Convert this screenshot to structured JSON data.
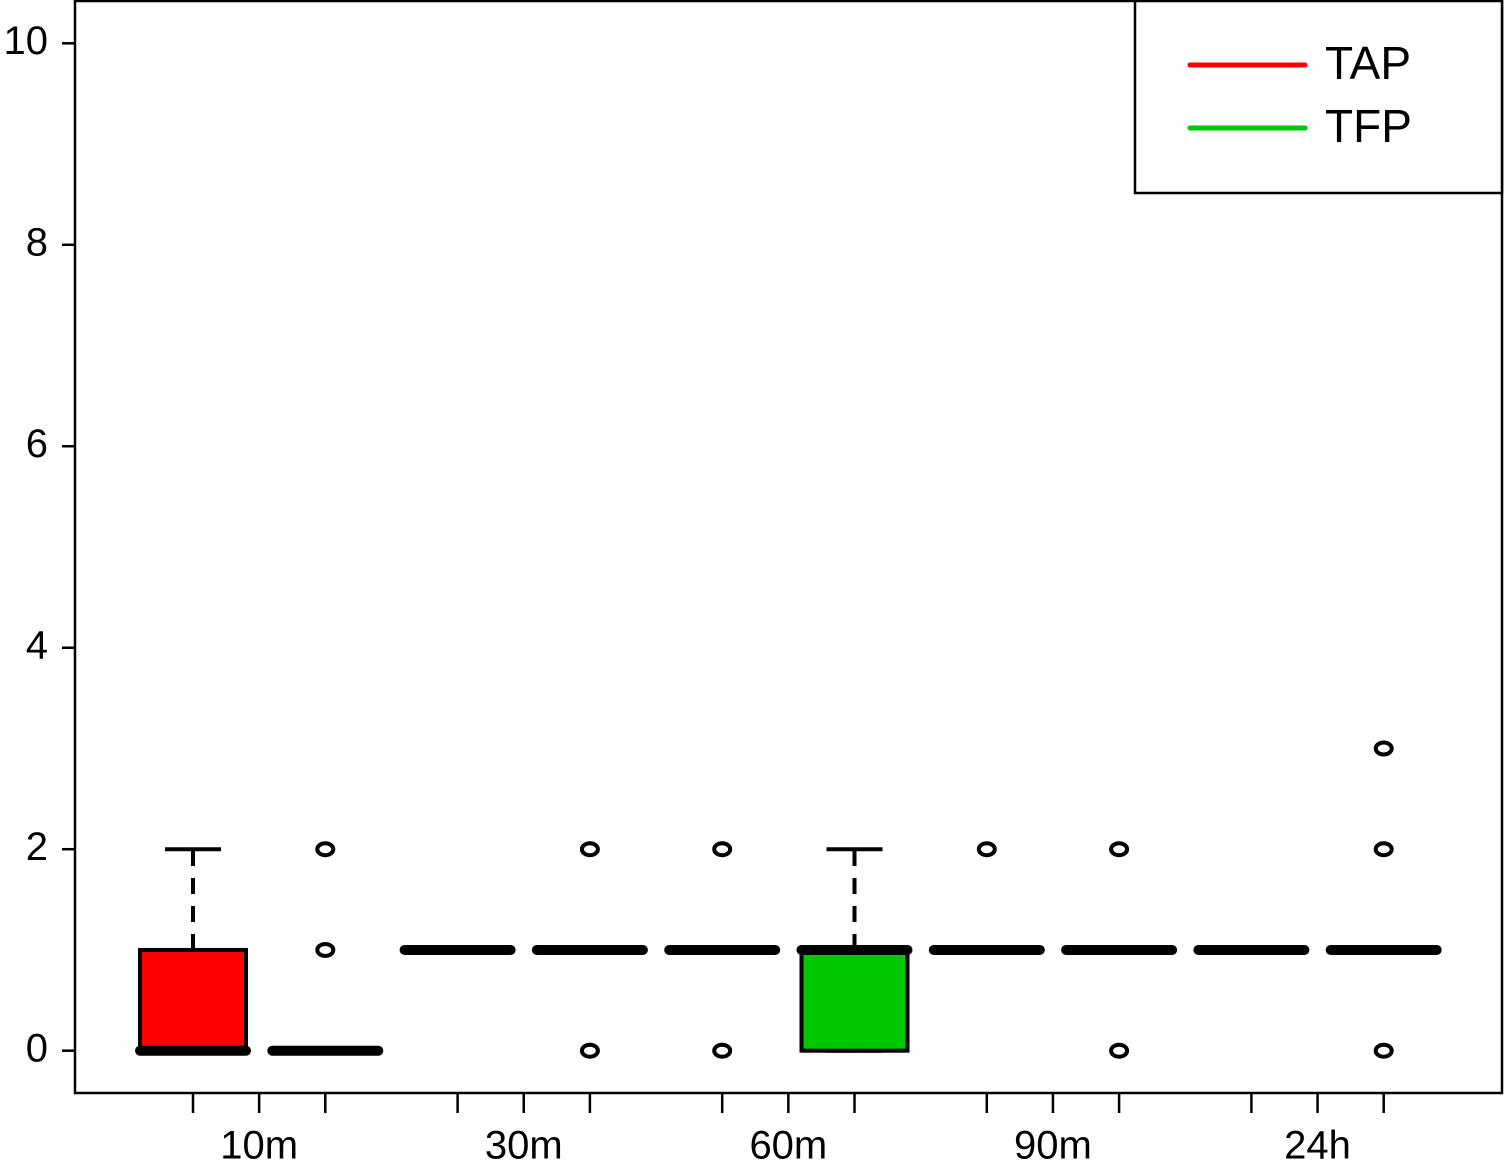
{
  "chart_data": {
    "type": "box",
    "categories": [
      "10m",
      "30m",
      "60m",
      "90m",
      "24h"
    ],
    "series": [
      {
        "name": "TAP",
        "color": "#ff0000"
      },
      {
        "name": "TFP",
        "color": "#00c800"
      }
    ],
    "boxes": [
      {
        "color": "#ff0000",
        "min": 0,
        "q1": 0,
        "median": 0,
        "q3": 1,
        "max": 2,
        "outliers": []
      },
      {
        "color": "#ff0000",
        "min": 0,
        "q1": 0,
        "median": 0,
        "q3": 0,
        "max": 0,
        "outliers": [
          1,
          2
        ]
      },
      {
        "color": "#ff0000",
        "min": 1,
        "q1": 1,
        "median": 1,
        "q3": 1,
        "max": 1,
        "outliers": []
      },
      {
        "color": "#ff0000",
        "min": 1,
        "q1": 1,
        "median": 1,
        "q3": 1,
        "max": 1,
        "outliers": [
          0,
          2
        ]
      },
      {
        "color": "#ff0000",
        "min": 1,
        "q1": 1,
        "median": 1,
        "q3": 1,
        "max": 1,
        "outliers": [
          0,
          2
        ]
      },
      {
        "color": "#00c800",
        "min": 0,
        "q1": 0,
        "median": 1,
        "q3": 1,
        "max": 2,
        "outliers": []
      },
      {
        "color": "#00c800",
        "min": 1,
        "q1": 1,
        "median": 1,
        "q3": 1,
        "max": 1,
        "outliers": [
          2
        ]
      },
      {
        "color": "#00c800",
        "min": 1,
        "q1": 1,
        "median": 1,
        "q3": 1,
        "max": 1,
        "outliers": [
          0,
          2
        ]
      },
      {
        "color": "#00c800",
        "min": 1,
        "q1": 1,
        "median": 1,
        "q3": 1,
        "max": 1,
        "outliers": []
      },
      {
        "color": "#00c800",
        "min": 1,
        "q1": 1,
        "median": 1,
        "q3": 1,
        "max": 1,
        "outliers": [
          0,
          2,
          3
        ]
      }
    ],
    "ylim": [
      -0.42,
      10.42
    ],
    "yticks": [
      0,
      2,
      4,
      6,
      8,
      10
    ],
    "legend": "top-right"
  }
}
